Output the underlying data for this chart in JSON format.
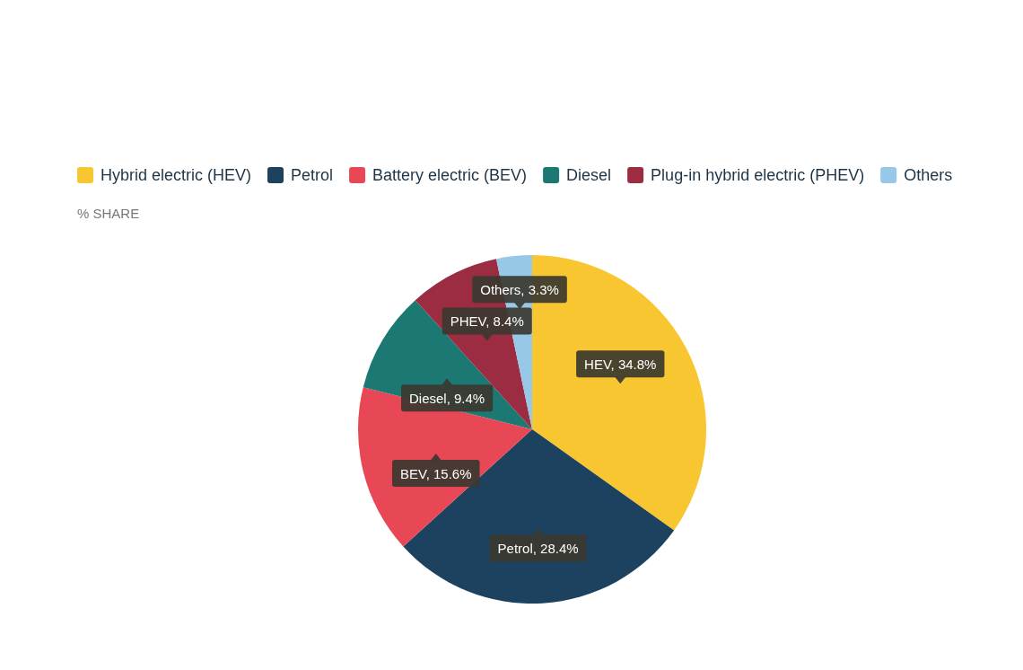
{
  "chart_data": {
    "type": "pie",
    "subtitle": "% SHARE",
    "categories": [
      "Hybrid electric (HEV)",
      "Petrol",
      "Battery electric (BEV)",
      "Diesel",
      "Plug-in hybrid electric (PHEV)",
      "Others"
    ],
    "values": [
      34.8,
      28.4,
      15.6,
      9.4,
      8.4,
      3.3
    ],
    "colors": [
      "#f8c630",
      "#1c4260",
      "#e84855",
      "#1c7872",
      "#9b2c42",
      "#98c8e8"
    ],
    "value_labels": [
      "HEV, 34.8%",
      "Petrol, 28.4%",
      "BEV, 15.6%",
      "Diesel, 9.4%",
      "PHEV, 8.4%",
      "Others, 3.3%"
    ],
    "legend": "top left"
  }
}
